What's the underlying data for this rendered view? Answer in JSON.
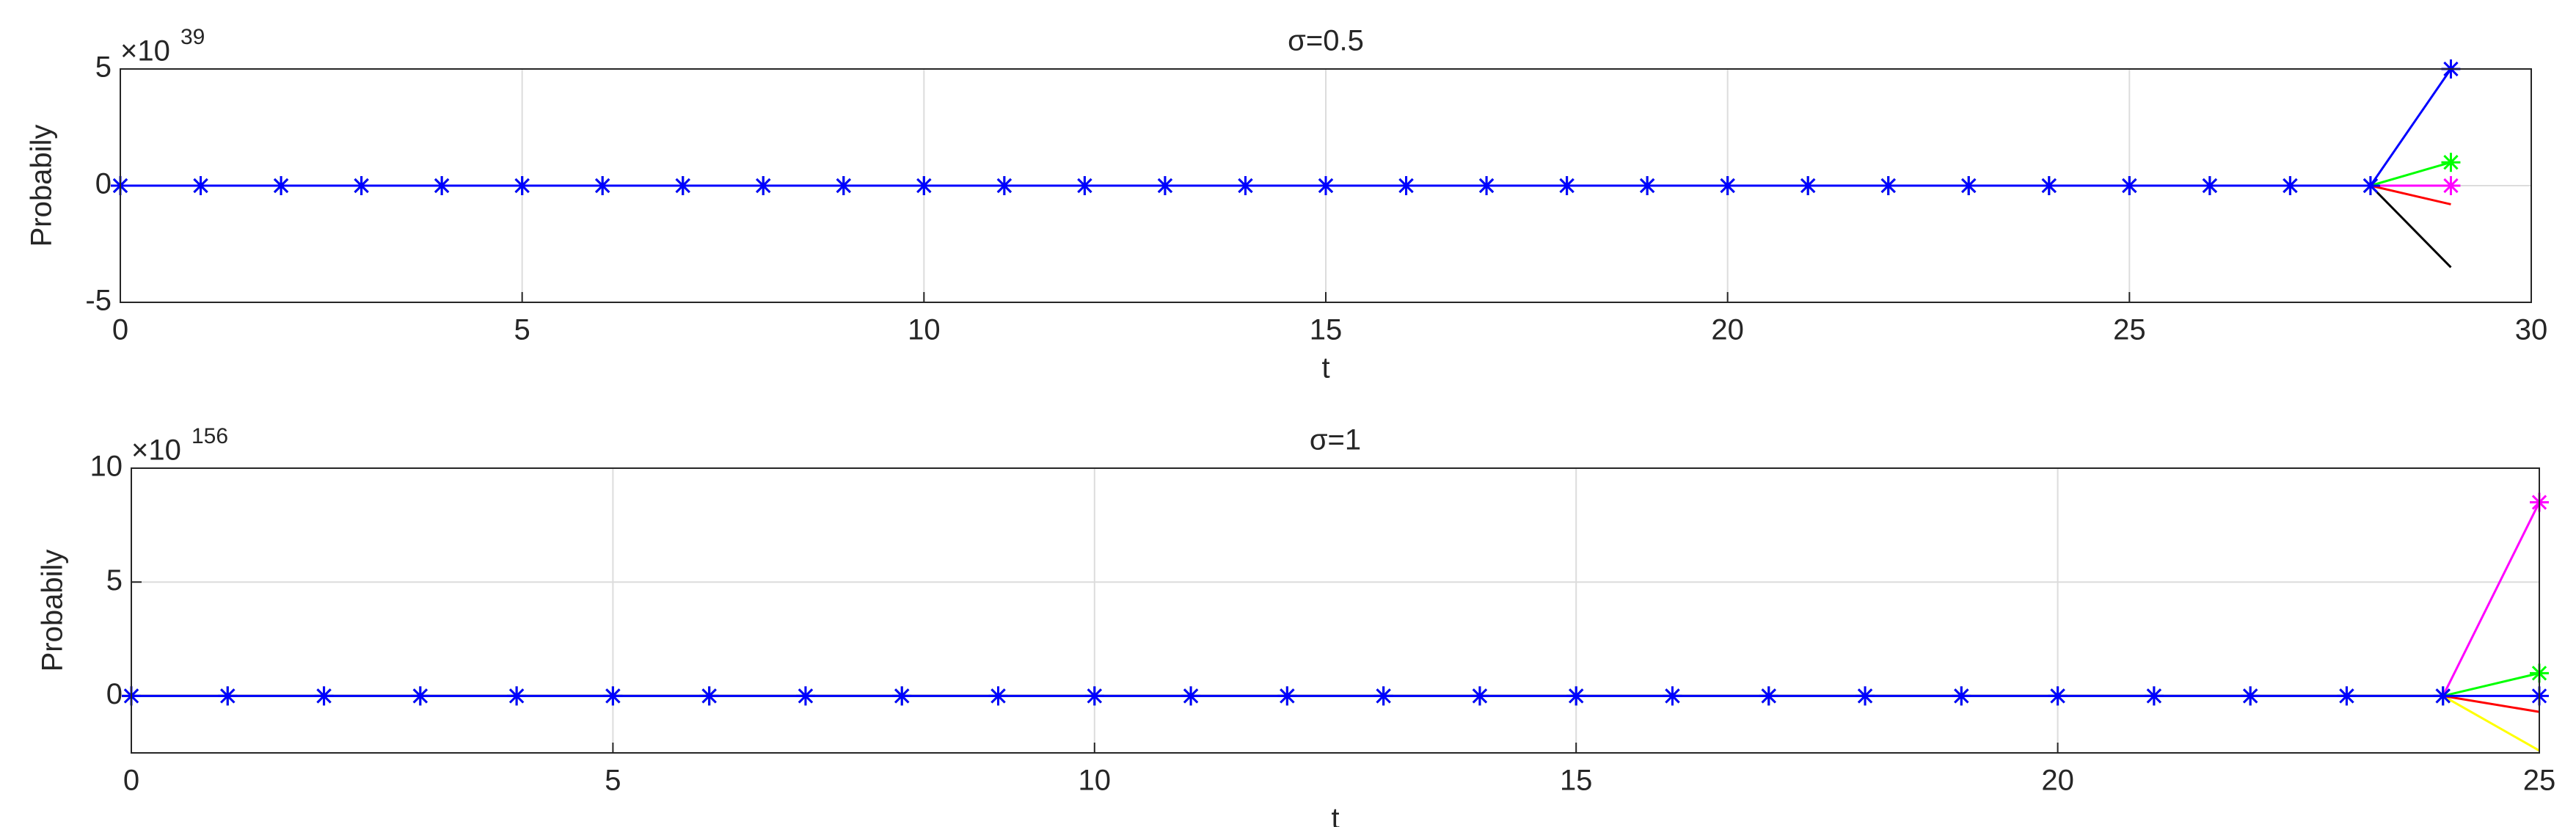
{
  "chart_data": [
    {
      "type": "line",
      "title": "σ=0.5",
      "x_label": "t",
      "y_label": "Probabily",
      "y_multiplier": "×10",
      "y_exponent": "39",
      "x": [
        0,
        1,
        2,
        3,
        4,
        5,
        6,
        7,
        8,
        9,
        10,
        11,
        12,
        13,
        14,
        15,
        16,
        17,
        18,
        19,
        20,
        21,
        22,
        23,
        24,
        25,
        26,
        27,
        28,
        29
      ],
      "xlim": [
        0,
        30
      ],
      "xticks": [
        0,
        5,
        10,
        15,
        20,
        25,
        30
      ],
      "ylim": [
        -5,
        5
      ],
      "yticks": [
        -5,
        0,
        5
      ],
      "grid": true,
      "series": [
        {
          "color": "#000000",
          "marker": false,
          "values": [
            0,
            0,
            0,
            0,
            0,
            0,
            0,
            0,
            0,
            0,
            0,
            0,
            0,
            0,
            0,
            0,
            0,
            0,
            0,
            0,
            0,
            0,
            0,
            0,
            0,
            0,
            0,
            0,
            0,
            -3.5
          ]
        },
        {
          "color": "#ff0000",
          "marker": false,
          "values": [
            0,
            0,
            0,
            0,
            0,
            0,
            0,
            0,
            0,
            0,
            0,
            0,
            0,
            0,
            0,
            0,
            0,
            0,
            0,
            0,
            0,
            0,
            0,
            0,
            0,
            0,
            0,
            0,
            0,
            -0.8
          ]
        },
        {
          "color": "#ff00ff",
          "marker": true,
          "values": [
            0,
            0,
            0,
            0,
            0,
            0,
            0,
            0,
            0,
            0,
            0,
            0,
            0,
            0,
            0,
            0,
            0,
            0,
            0,
            0,
            0,
            0,
            0,
            0,
            0,
            0,
            0,
            0,
            0,
            0
          ]
        },
        {
          "color": "#00ff00",
          "marker": true,
          "values": [
            0,
            0,
            0,
            0,
            0,
            0,
            0,
            0,
            0,
            0,
            0,
            0,
            0,
            0,
            0,
            0,
            0,
            0,
            0,
            0,
            0,
            0,
            0,
            0,
            0,
            0,
            0,
            0,
            0,
            1
          ]
        },
        {
          "color": "#0000ff",
          "marker": true,
          "values": [
            0,
            0,
            0,
            0,
            0,
            0,
            0,
            0,
            0,
            0,
            0,
            0,
            0,
            0,
            0,
            0,
            0,
            0,
            0,
            0,
            0,
            0,
            0,
            0,
            0,
            0,
            0,
            0,
            0,
            5
          ]
        }
      ]
    },
    {
      "type": "line",
      "title": "σ=1",
      "x_label": "t",
      "y_label": "Probabily",
      "y_multiplier": "×10",
      "y_exponent": "156",
      "x": [
        0,
        1,
        2,
        3,
        4,
        5,
        6,
        7,
        8,
        9,
        10,
        11,
        12,
        13,
        14,
        15,
        16,
        17,
        18,
        19,
        20,
        21,
        22,
        23,
        24,
        25
      ],
      "xlim": [
        0,
        25
      ],
      "xticks": [
        0,
        5,
        10,
        15,
        20,
        25
      ],
      "ylim": [
        -2.5,
        10
      ],
      "yticks": [
        0,
        5,
        10
      ],
      "grid": true,
      "series": [
        {
          "color": "#ffff00",
          "marker": false,
          "values": [
            0,
            0,
            0,
            0,
            0,
            0,
            0,
            0,
            0,
            0,
            0,
            0,
            0,
            0,
            0,
            0,
            0,
            0,
            0,
            0,
            0,
            0,
            0,
            0,
            0,
            -2.4
          ]
        },
        {
          "color": "#ff0000",
          "marker": false,
          "values": [
            0,
            0,
            0,
            0,
            0,
            0,
            0,
            0,
            0,
            0,
            0,
            0,
            0,
            0,
            0,
            0,
            0,
            0,
            0,
            0,
            0,
            0,
            0,
            0,
            0,
            -0.7
          ]
        },
        {
          "color": "#ff00ff",
          "marker": true,
          "values": [
            0,
            0,
            0,
            0,
            0,
            0,
            0,
            0,
            0,
            0,
            0,
            0,
            0,
            0,
            0,
            0,
            0,
            0,
            0,
            0,
            0,
            0,
            0,
            0,
            0,
            8.5
          ]
        },
        {
          "color": "#00ff00",
          "marker": true,
          "values": [
            0,
            0,
            0,
            0,
            0,
            0,
            0,
            0,
            0,
            0,
            0,
            0,
            0,
            0,
            0,
            0,
            0,
            0,
            0,
            0,
            0,
            0,
            0,
            0,
            0,
            1
          ]
        },
        {
          "color": "#0000ff",
          "marker": true,
          "values": [
            0,
            0,
            0,
            0,
            0,
            0,
            0,
            0,
            0,
            0,
            0,
            0,
            0,
            0,
            0,
            0,
            0,
            0,
            0,
            0,
            0,
            0,
            0,
            0,
            0,
            0
          ]
        }
      ]
    }
  ]
}
